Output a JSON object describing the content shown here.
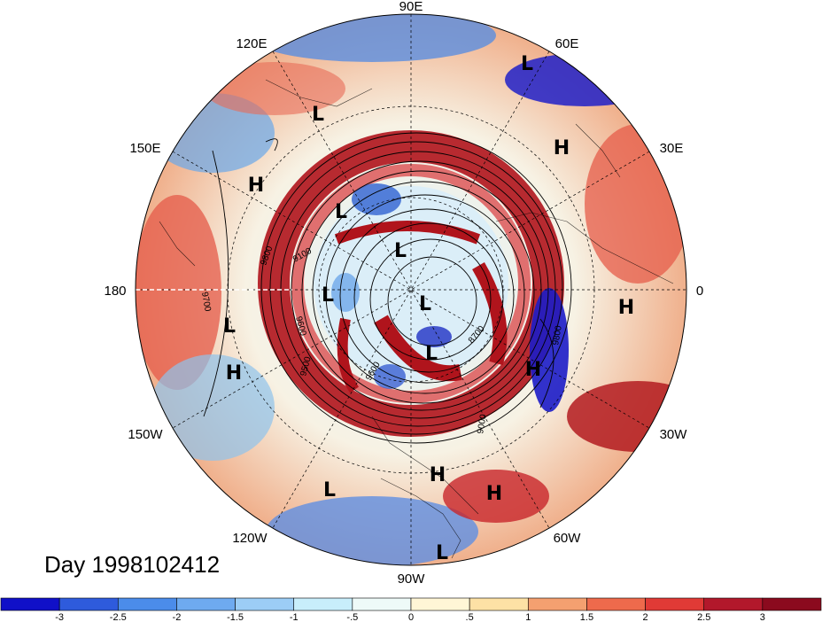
{
  "map": {
    "title": "Day 1998102412",
    "longitude_labels": [
      "90E",
      "120E",
      "60E",
      "150E",
      "30E",
      "180",
      "0",
      "150W",
      "30W",
      "120W",
      "60W",
      "90W"
    ],
    "contour_labels": [
      "9800",
      "9100",
      "9700",
      "9600",
      "9500",
      "9600",
      "9000",
      "8700",
      "9800"
    ],
    "pressure_markers": [
      {
        "text": "L",
        "id": "l-siberia"
      },
      {
        "text": "L",
        "id": "l-east-asia"
      },
      {
        "text": "H",
        "id": "h-europe"
      },
      {
        "text": "H",
        "id": "h-north-pacific"
      },
      {
        "text": "L",
        "id": "l-kara"
      },
      {
        "text": "L",
        "id": "l-arctic"
      },
      {
        "text": "L",
        "id": "l-beaufort"
      },
      {
        "text": "L",
        "id": "l-greenland"
      },
      {
        "text": "L",
        "id": "l-canada"
      },
      {
        "text": "H",
        "id": "h-africa"
      },
      {
        "text": "L",
        "id": "l-central-pacific"
      },
      {
        "text": "H",
        "id": "h-hawaii"
      },
      {
        "text": "H",
        "id": "h-atlantic"
      },
      {
        "text": "L",
        "id": "l-east-pacific"
      },
      {
        "text": "H",
        "id": "h-gulf"
      },
      {
        "text": "H",
        "id": "h-caribbean"
      },
      {
        "text": "L",
        "id": "l-panama"
      }
    ],
    "colors": {
      "strong_positive": "#a50f15",
      "positive": "#e0473c",
      "weak_positive": "#f4a582",
      "neutral_warm": "#fdf0c8",
      "neutral_cool": "#dff3f9",
      "weak_negative": "#8fc4ea",
      "negative": "#3b6fd6",
      "strong_negative": "#1c1cc8"
    }
  },
  "colorbar": {
    "ticks": [
      "-3",
      "-2.5",
      "-2",
      "-1.5",
      "-1",
      "-.5",
      "0",
      ".5",
      "1",
      "1.5",
      "2",
      "2.5",
      "3"
    ],
    "colors": [
      "#1010c8",
      "#2e5bdc",
      "#4b8cea",
      "#6eaaf0",
      "#9ccdf6",
      "#c8eefb",
      "#eefaf8",
      "#fff6d6",
      "#fde1a5",
      "#f4a070",
      "#ee6a4c",
      "#e03a36",
      "#b2182b",
      "#8b0a1e"
    ]
  }
}
